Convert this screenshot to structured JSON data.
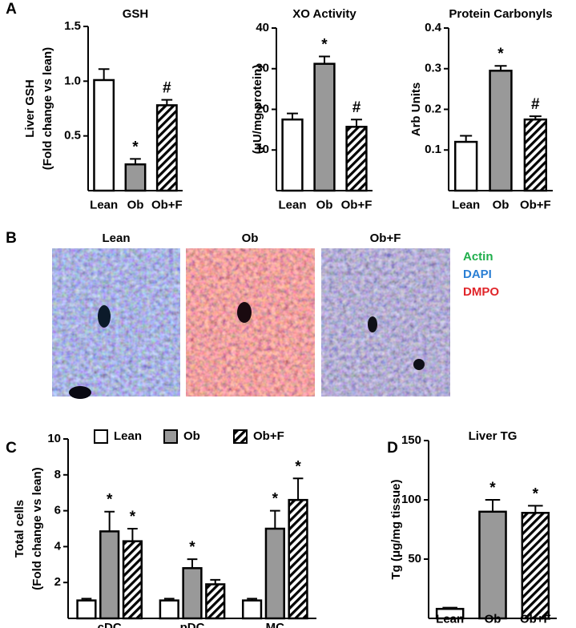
{
  "panel_labels": [
    "A",
    "B",
    "C",
    "D"
  ],
  "panel_b": {
    "columns": [
      "Lean",
      "Ob",
      "Ob+F"
    ],
    "legend": [
      {
        "name": "Actin",
        "color": "#1fae4b"
      },
      {
        "name": "DAPI",
        "color": "#2a7fd4"
      },
      {
        "name": "DMPO",
        "color": "#e0262b"
      }
    ]
  },
  "chart_data": [
    {
      "type": "bar",
      "title": "GSH",
      "ylabel": [
        "Liver GSH",
        "(Fold change vs lean)"
      ],
      "categories": [
        "Lean",
        "Ob",
        "Ob+F"
      ],
      "values": [
        1.01,
        0.24,
        0.78
      ],
      "errors": [
        0.1,
        0.05,
        0.05
      ],
      "colors": [
        "#ffffff",
        "#999999",
        "#ffffff"
      ],
      "patterns": [
        "solid",
        "solid",
        "hatch"
      ],
      "annotations": [
        null,
        "*",
        "#"
      ],
      "ylim": [
        0,
        1.5
      ],
      "yticks": [
        0.5,
        {
          "value": 1,
          "label": "1.0"
        },
        1.5
      ]
    },
    {
      "type": "bar",
      "title": "XO Activity",
      "ylabel": [
        "(μU/mg protein)"
      ],
      "categories": [
        "Lean",
        "Ob",
        "Ob+F"
      ],
      "values": [
        17.5,
        31.2,
        15.7
      ],
      "errors": [
        1.5,
        1.8,
        1.8
      ],
      "colors": [
        "#ffffff",
        "#999999",
        "#ffffff"
      ],
      "patterns": [
        "solid",
        "solid",
        "hatch"
      ],
      "annotations": [
        null,
        "*",
        "#"
      ],
      "ylim": [
        0,
        40
      ],
      "yticks": [
        10,
        20,
        30,
        40
      ]
    },
    {
      "type": "bar",
      "title": "Protein Carbonyls",
      "ylabel": [
        "Arb Units"
      ],
      "categories": [
        "Lean",
        "Ob",
        "Ob+F"
      ],
      "values": [
        0.12,
        0.295,
        0.175
      ],
      "errors": [
        0.015,
        0.012,
        0.008
      ],
      "colors": [
        "#ffffff",
        "#999999",
        "#ffffff"
      ],
      "patterns": [
        "solid",
        "solid",
        "hatch"
      ],
      "annotations": [
        null,
        "*",
        "#"
      ],
      "ylim": [
        0,
        0.4
      ],
      "yticks": [
        0.1,
        0.2,
        0.3,
        0.4
      ]
    },
    {
      "type": "grouped-bar",
      "ylabel": [
        "Total cells",
        "(Fold change vs lean)"
      ],
      "categories": [
        "cDC",
        "pDC",
        "MC"
      ],
      "series": [
        {
          "name": "Lean",
          "color": "#ffffff",
          "pattern": "solid",
          "values": [
            1,
            1,
            1
          ],
          "errors": [
            0.1,
            0.1,
            0.1
          ],
          "annotations": [
            null,
            null,
            null
          ]
        },
        {
          "name": "Ob",
          "color": "#999999",
          "pattern": "solid",
          "values": [
            4.85,
            2.8,
            5.0
          ],
          "errors": [
            1.1,
            0.5,
            1.0
          ],
          "annotations": [
            "*",
            "*",
            "*"
          ]
        },
        {
          "name": "Ob+F",
          "color": "#ffffff",
          "pattern": "hatch",
          "values": [
            4.3,
            1.9,
            6.6
          ],
          "errors": [
            0.7,
            0.25,
            1.2
          ],
          "annotations": [
            "*",
            null,
            "*"
          ]
        }
      ],
      "ylim": [
        0,
        10
      ],
      "yticks": [
        2,
        4,
        6,
        8,
        10
      ],
      "legend": "top"
    },
    {
      "type": "bar",
      "title": "Liver TG",
      "ylabel": [
        "Tg (μg/mg tissue)"
      ],
      "categories": [
        "Lean",
        "Ob",
        "Ob+F"
      ],
      "values": [
        8,
        90,
        89
      ],
      "errors": [
        1,
        10,
        6
      ],
      "colors": [
        "#ffffff",
        "#999999",
        "#ffffff"
      ],
      "patterns": [
        "solid",
        "solid",
        "hatch"
      ],
      "annotations": [
        null,
        "*",
        "*"
      ],
      "ylim": [
        0,
        150
      ],
      "yticks": [
        50,
        100,
        150
      ]
    }
  ]
}
